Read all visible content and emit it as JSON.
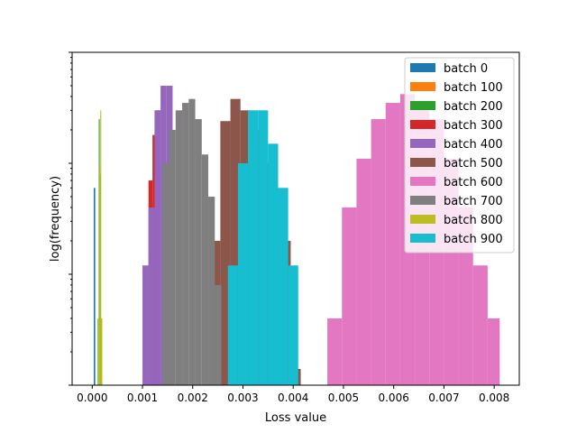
{
  "chart_data": {
    "type": "histogram",
    "title": "",
    "xlabel": "Loss value",
    "ylabel": "log(frequency)",
    "xlim": [
      -0.0004,
      0.0085
    ],
    "yscale": "log",
    "ylim": [
      1,
      1000
    ],
    "xticks": [
      0.0,
      0.001,
      0.002,
      0.003,
      0.004,
      0.005,
      0.006,
      0.007,
      0.008
    ],
    "xtick_labels": [
      "0.000",
      "0.001",
      "0.002",
      "0.003",
      "0.004",
      "0.005",
      "0.006",
      "0.007",
      "0.008"
    ],
    "grid": false,
    "legend_position": "top-right",
    "series": [
      {
        "name": "batch 0",
        "color": "#1f77b4",
        "bins": [
          [
            3e-05,
            6e-05,
            60
          ]
        ]
      },
      {
        "name": "batch 100",
        "color": "#ff7f0e",
        "bins": [
          [
            0.00016,
            0.0002,
            4
          ]
        ]
      },
      {
        "name": "batch 200",
        "color": "#2ca02c",
        "bins": [
          [
            0.00011,
            0.00013,
            4
          ],
          [
            0.00013,
            0.00015,
            250
          ],
          [
            0.00015,
            0.00017,
            80
          ]
        ]
      },
      {
        "name": "batch 300",
        "color": "#d62728",
        "bins": [
          [
            0.00112,
            0.0012,
            70
          ],
          [
            0.0012,
            0.00128,
            180
          ],
          [
            0.00128,
            0.00136,
            300
          ]
        ]
      },
      {
        "name": "batch 400",
        "color": "#9467bd",
        "bins": [
          [
            0.001,
            0.00112,
            12
          ],
          [
            0.00112,
            0.00124,
            40
          ],
          [
            0.00124,
            0.00136,
            300
          ],
          [
            0.00136,
            0.00148,
            500
          ],
          [
            0.00148,
            0.0016,
            500
          ]
        ]
      },
      {
        "name": "batch 500",
        "color": "#8c564b",
        "bins": [
          [
            0.00235,
            0.00255,
            20
          ],
          [
            0.00255,
            0.00275,
            240
          ],
          [
            0.00275,
            0.00295,
            380
          ],
          [
            0.00295,
            0.00315,
            300
          ],
          [
            0.00315,
            0.00335,
            200
          ],
          [
            0.00335,
            0.00355,
            100
          ],
          [
            0.00355,
            0.00375,
            50
          ],
          [
            0.00375,
            0.00395,
            20
          ],
          [
            0.00395,
            0.00415,
            1.4
          ]
        ]
      },
      {
        "name": "batch 600",
        "color": "#e377c2",
        "bins": [
          [
            0.00468,
            0.00497,
            4
          ],
          [
            0.00497,
            0.00526,
            40
          ],
          [
            0.00526,
            0.00555,
            110
          ],
          [
            0.00555,
            0.00584,
            250
          ],
          [
            0.00584,
            0.00613,
            350
          ],
          [
            0.00613,
            0.00642,
            420
          ],
          [
            0.00642,
            0.00671,
            350
          ],
          [
            0.00671,
            0.007,
            250
          ],
          [
            0.007,
            0.00729,
            110
          ],
          [
            0.00729,
            0.00758,
            40
          ],
          [
            0.00758,
            0.00787,
            12
          ],
          [
            0.00787,
            0.00811,
            4
          ]
        ]
      },
      {
        "name": "batch 700",
        "color": "#7f7f7f",
        "bins": [
          [
            0.0014,
            0.00153,
            100
          ],
          [
            0.00153,
            0.00166,
            200
          ],
          [
            0.00166,
            0.00179,
            300
          ],
          [
            0.00179,
            0.00192,
            350
          ],
          [
            0.00192,
            0.00205,
            380
          ],
          [
            0.00205,
            0.00218,
            250
          ],
          [
            0.00218,
            0.00231,
            120
          ],
          [
            0.00231,
            0.00244,
            50
          ],
          [
            0.00244,
            0.00257,
            8
          ]
        ]
      },
      {
        "name": "batch 800",
        "color": "#bcbd22",
        "bins": [
          [
            0.00012,
            0.00014,
            4
          ],
          [
            0.00014,
            0.00016,
            90
          ],
          [
            0.00016,
            0.00018,
            300
          ],
          [
            0.00018,
            0.0002,
            4
          ]
        ]
      },
      {
        "name": "batch 900",
        "color": "#17becf",
        "bins": [
          [
            0.0027,
            0.0029,
            12
          ],
          [
            0.0029,
            0.0031,
            100
          ],
          [
            0.0031,
            0.0033,
            300
          ],
          [
            0.0033,
            0.0035,
            300
          ],
          [
            0.0035,
            0.0037,
            150
          ],
          [
            0.0037,
            0.0039,
            60
          ],
          [
            0.0039,
            0.0041,
            12
          ]
        ]
      }
    ]
  }
}
